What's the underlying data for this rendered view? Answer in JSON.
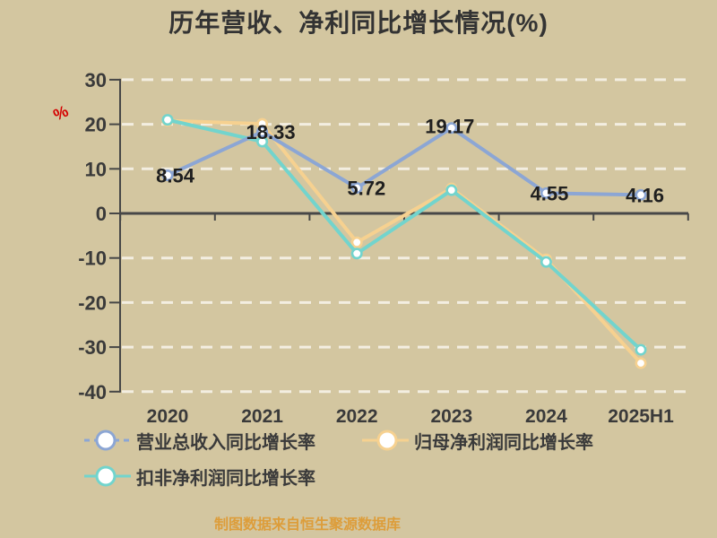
{
  "title": "历年营收、净利同比增长情况(%)",
  "y_axis_unit": "%",
  "footer": "制图数据来自恒生聚源数据库",
  "colors": {
    "background": "#d3c6a0",
    "grid": "#f3eee1",
    "axis": "#474747",
    "tick_text": "#3a3a3a",
    "value_label": "#1f1f1f",
    "unit_text": "#d40000",
    "footer_text": "#dd9d3a",
    "series_revenue": "#8ca6d4",
    "series_net_profit": "#f6d190",
    "series_non_gaap": "#72d4cd"
  },
  "chart_data": {
    "type": "line",
    "title": "历年营收、净利同比增长情况(%)",
    "categories": [
      "2020",
      "2021",
      "2022",
      "2023",
      "2024",
      "2025H1"
    ],
    "series": [
      {
        "name": "营业总收入同比增长率",
        "color": "#8ca6d4",
        "values": [
          8.54,
          18.33,
          5.72,
          19.17,
          4.55,
          4.16
        ],
        "labeled": true
      },
      {
        "name": "归母净利润同比增长率",
        "color": "#f6d190",
        "values": [
          20.8,
          20.1,
          -6.5,
          5.6,
          -10.3,
          -33.6
        ],
        "labeled": false
      },
      {
        "name": "扣非净利润同比增长率",
        "color": "#72d4cd",
        "values": [
          21.0,
          16.1,
          -9.0,
          5.2,
          -10.9,
          -30.6
        ],
        "labeled": false
      }
    ],
    "y_ticks": [
      30,
      20,
      10,
      0,
      -10,
      -20,
      -30,
      -40
    ],
    "ylim": [
      -40,
      30
    ],
    "ylabel": "%",
    "xlabel": "",
    "grid": "horizontal-dashed",
    "legend_position": "bottom-left"
  },
  "legend": {
    "items": [
      {
        "label": "营业总收入同比增长率"
      },
      {
        "label": "归母净利润同比增长率"
      },
      {
        "label": "扣非净利润同比增长率"
      }
    ]
  }
}
